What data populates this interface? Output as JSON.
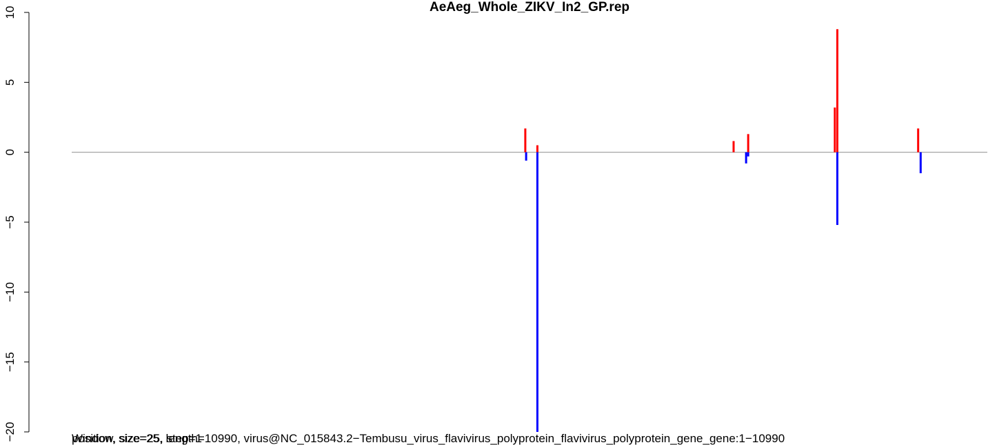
{
  "chart_data": {
    "type": "bar",
    "title": "AeAeg_Whole_ZIKV_In2_GP.rep",
    "xlabel": "",
    "ylabel": "",
    "ylim": [
      -20,
      10
    ],
    "xlim": [
      1,
      10990
    ],
    "yticks": [
      {
        "value": 10,
        "label": "10"
      },
      {
        "value": 5,
        "label": "5"
      },
      {
        "value": 0,
        "label": "0"
      },
      {
        "value": -5,
        "label": "−5"
      },
      {
        "value": -10,
        "label": "−10"
      },
      {
        "value": -15,
        "label": "−15"
      },
      {
        "value": -20,
        "label": "−20"
      }
    ],
    "baseline": 0,
    "footer_texts": [
      "position, size=25, length=10990, virus@NC_015843.2−Tembusu_virus_flavivirus_polyprotein_flavivirus_polyprotein_gene_gene:1−10990",
      "Window, size=25, step=1"
    ],
    "series": [
      {
        "color": "#ff0000",
        "bars": [
          {
            "x": 5445,
            "value": 1.7
          },
          {
            "x": 5590,
            "value": 0.5
          },
          {
            "x": 7945,
            "value": 0.8
          },
          {
            "x": 8120,
            "value": 1.3
          },
          {
            "x": 9160,
            "value": 3.2
          },
          {
            "x": 9190,
            "value": 8.8
          },
          {
            "x": 10160,
            "value": 1.7
          }
        ]
      },
      {
        "color": "#0000ff",
        "bars": [
          {
            "x": 5455,
            "value": -0.6
          },
          {
            "x": 5590,
            "value": -20
          },
          {
            "x": 8095,
            "value": -0.8
          },
          {
            "x": 8120,
            "value": -0.3
          },
          {
            "x": 9190,
            "value": -5.2
          },
          {
            "x": 10190,
            "value": -1.5
          }
        ]
      }
    ]
  }
}
